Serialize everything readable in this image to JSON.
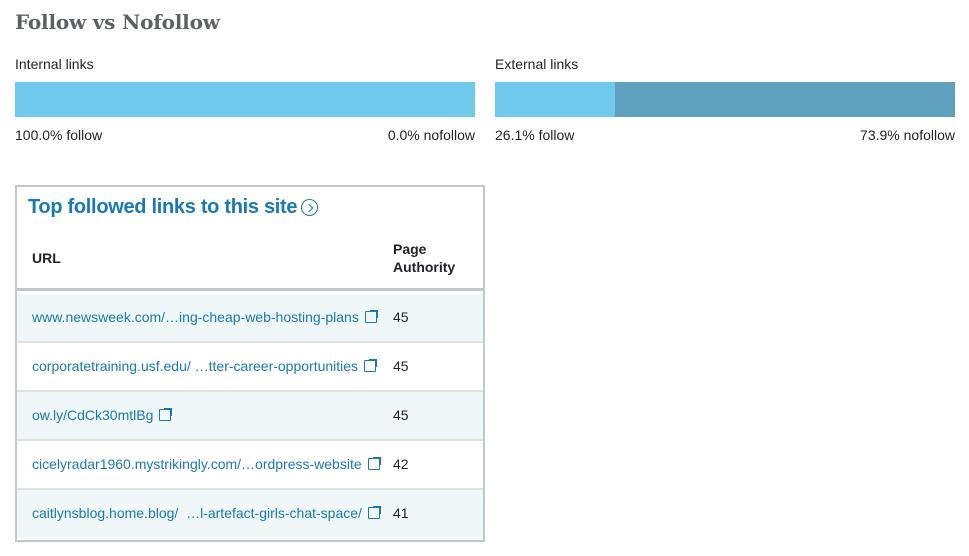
{
  "title": "Follow vs Nofollow",
  "internal": {
    "label": "Internal links",
    "follow_pct": 100.0,
    "nofollow_pct": 0.0,
    "follow_text": "100.0% follow",
    "nofollow_text": "0.0% nofollow"
  },
  "external": {
    "label": "External links",
    "follow_pct": 26.1,
    "nofollow_pct": 73.9,
    "follow_text": "26.1% follow",
    "nofollow_text": "73.9% nofollow"
  },
  "colors": {
    "follow": "#6ec9ed",
    "nofollow": "#5ea0bd",
    "link": "#1a79b4"
  },
  "top_links": {
    "title": "Top followed links to this site",
    "title_icon": "chevron-circle-right-icon",
    "columns": [
      "URL",
      "Page Authority"
    ],
    "rows": [
      {
        "url": "www.newsweek.com/…ing-cheap-web-hosting-plans",
        "pa": "45"
      },
      {
        "url": "corporatetraining.usf.edu/ …tter-career-opportunities",
        "pa": "45"
      },
      {
        "url": "ow.ly/CdCk30mtlBg",
        "pa": "45"
      },
      {
        "url": "cicelyradar1960.mystrikingly.com/…ordpress-website",
        "pa": "42"
      },
      {
        "url": "caitlynsblog.home.blog/  …l-artefact-girls-chat-space/",
        "pa": "41"
      }
    ],
    "row_icon": "external-link-icon"
  }
}
